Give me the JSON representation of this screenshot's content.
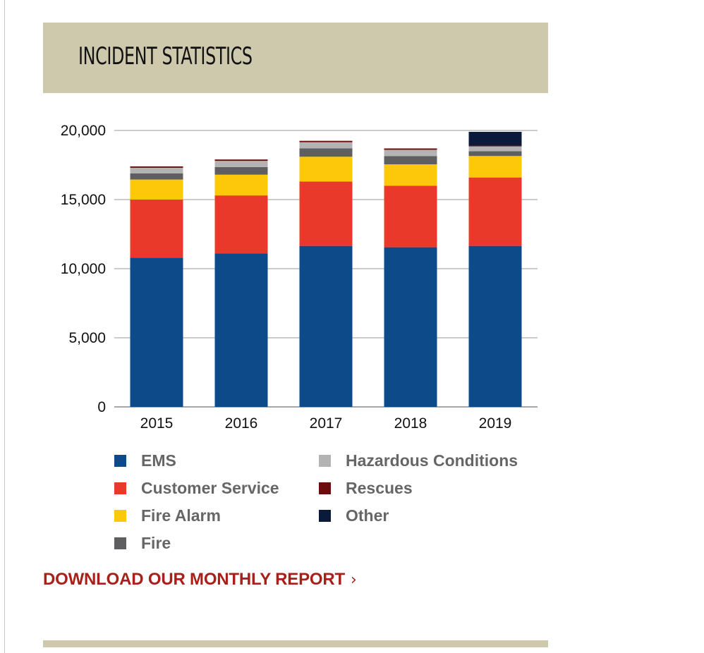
{
  "header": {
    "title": "INCIDENT STATISTICS"
  },
  "colors": {
    "header_bg": "#cec9ad",
    "ems": "#0d4a8a",
    "customer_service": "#e8392b",
    "fire_alarm": "#fdc80a",
    "fire": "#5f5f61",
    "hazardous_conditions": "#b3b3b3",
    "rescues": "#6b0d0d",
    "other": "#0b1a3b",
    "link": "#a8201a"
  },
  "chart_data": {
    "type": "bar",
    "stacked": true,
    "categories": [
      "2015",
      "2016",
      "2017",
      "2018",
      "2019"
    ],
    "series": [
      {
        "name": "EMS",
        "color": "#0d4a8a",
        "values": [
          10800,
          11100,
          11650,
          11550,
          11650
        ]
      },
      {
        "name": "Customer Service",
        "color": "#e8392b",
        "values": [
          4200,
          4200,
          4650,
          4450,
          4950
        ]
      },
      {
        "name": "Fire Alarm",
        "color": "#fdc80a",
        "values": [
          1450,
          1500,
          1800,
          1550,
          1550
        ]
      },
      {
        "name": "Fire",
        "color": "#5f5f61",
        "values": [
          450,
          550,
          600,
          600,
          350
        ]
      },
      {
        "name": "Hazardous Conditions",
        "color": "#b3b3b3",
        "values": [
          400,
          450,
          450,
          450,
          350
        ]
      },
      {
        "name": "Rescues",
        "color": "#6b0d0d",
        "values": [
          100,
          100,
          100,
          100,
          50
        ]
      },
      {
        "name": "Other",
        "color": "#0b1a3b",
        "values": [
          0,
          0,
          0,
          0,
          1000
        ]
      }
    ],
    "y_ticks": [
      "0",
      "5,000",
      "10,000",
      "15,000",
      "20,000"
    ],
    "ylim": [
      0,
      20000
    ],
    "grid": true,
    "legend_position": "bottom"
  },
  "legend": {
    "items": [
      {
        "label": "EMS",
        "color": "#0d4a8a"
      },
      {
        "label": "Customer Service",
        "color": "#e8392b"
      },
      {
        "label": "Fire Alarm",
        "color": "#fdc80a"
      },
      {
        "label": "Fire",
        "color": "#5f5f61"
      },
      {
        "label": "Hazardous Conditions",
        "color": "#b3b3b3"
      },
      {
        "label": "Rescues",
        "color": "#6b0d0d"
      },
      {
        "label": "Other",
        "color": "#0b1a3b"
      }
    ]
  },
  "link": {
    "label": "DOWNLOAD OUR MONTHLY REPORT",
    "chevron_icon": "chevron-right-icon"
  }
}
